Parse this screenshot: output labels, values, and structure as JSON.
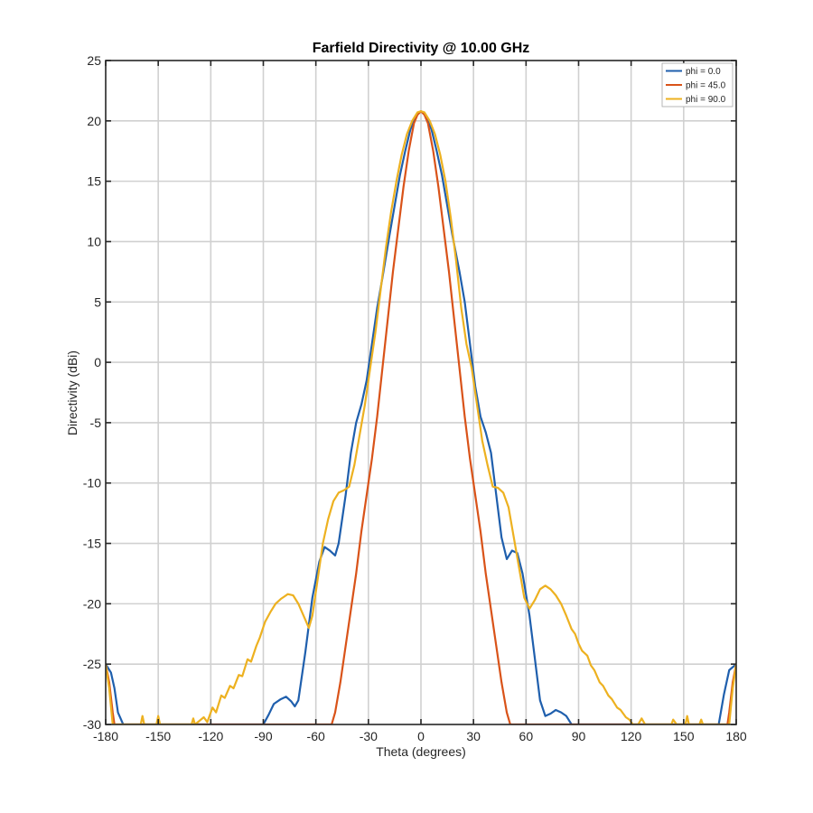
{
  "chart_data": {
    "type": "line",
    "title": "Farfield Directivity @ 10.00 GHz",
    "xlabel": "Theta (degrees)",
    "ylabel": "Directivity (dBi)",
    "xlim": [
      -180,
      180
    ],
    "ylim": [
      -30,
      25
    ],
    "xticks": [
      -180,
      -150,
      -120,
      -90,
      -60,
      -30,
      0,
      30,
      60,
      90,
      120,
      150,
      180
    ],
    "yticks": [
      -30,
      -25,
      -20,
      -15,
      -10,
      -5,
      0,
      5,
      10,
      15,
      20,
      25
    ],
    "grid": true,
    "legend_position": "top-right",
    "series": [
      {
        "name": "phi = 0.0",
        "color": "#1f5fad",
        "points": [
          [
            -180,
            -25
          ],
          [
            -177,
            -25.7
          ],
          [
            -175,
            -27
          ],
          [
            -173,
            -29
          ],
          [
            -170,
            -30
          ],
          [
            -90,
            -30
          ],
          [
            -87,
            -29.2
          ],
          [
            -84,
            -28.3
          ],
          [
            -80,
            -27.9
          ],
          [
            -77,
            -27.7
          ],
          [
            -74,
            -28.1
          ],
          [
            -72,
            -28.5
          ],
          [
            -70,
            -28
          ],
          [
            -66,
            -24
          ],
          [
            -62,
            -19.5
          ],
          [
            -58,
            -16.5
          ],
          [
            -55,
            -15.3
          ],
          [
            -52,
            -15.6
          ],
          [
            -49,
            -16
          ],
          [
            -47,
            -15
          ],
          [
            -43,
            -11
          ],
          [
            -40,
            -7.5
          ],
          [
            -37,
            -5
          ],
          [
            -34,
            -3.5
          ],
          [
            -31,
            -1.5
          ],
          [
            -28,
            1.5
          ],
          [
            -25,
            4.5
          ],
          [
            -22,
            7
          ],
          [
            -18,
            10.5
          ],
          [
            -15,
            13
          ],
          [
            -12,
            15.5
          ],
          [
            -9,
            17.5
          ],
          [
            -6,
            19.3
          ],
          [
            -3,
            20.4
          ],
          [
            0,
            20.8
          ],
          [
            3,
            20.4
          ],
          [
            6,
            19.3
          ],
          [
            9,
            17.5
          ],
          [
            12,
            15.5
          ],
          [
            15,
            13
          ],
          [
            18,
            10.5
          ],
          [
            22,
            7.5
          ],
          [
            25,
            5
          ],
          [
            28,
            1.5
          ],
          [
            31,
            -2
          ],
          [
            34,
            -4.5
          ],
          [
            37,
            -5.8
          ],
          [
            40,
            -7.5
          ],
          [
            43,
            -11
          ],
          [
            46,
            -14.5
          ],
          [
            49,
            -16.3
          ],
          [
            52,
            -15.6
          ],
          [
            55,
            -15.8
          ],
          [
            58,
            -17.5
          ],
          [
            62,
            -21
          ],
          [
            65,
            -24.5
          ],
          [
            68,
            -28
          ],
          [
            71,
            -29.3
          ],
          [
            74,
            -29.1
          ],
          [
            77,
            -28.8
          ],
          [
            80,
            -29
          ],
          [
            83,
            -29.3
          ],
          [
            86,
            -30
          ],
          [
            170,
            -30
          ],
          [
            173,
            -27.5
          ],
          [
            176,
            -25.5
          ],
          [
            180,
            -25
          ]
        ]
      },
      {
        "name": "phi = 45.0",
        "color": "#d95319",
        "points": [
          [
            -180,
            -25
          ],
          [
            -178,
            -26.5
          ],
          [
            -176,
            -29
          ],
          [
            -175,
            -30
          ],
          [
            -51,
            -30
          ],
          [
            -49,
            -29
          ],
          [
            -46,
            -26.5
          ],
          [
            -43,
            -23.5
          ],
          [
            -40,
            -20.5
          ],
          [
            -37,
            -17.5
          ],
          [
            -34,
            -14
          ],
          [
            -31,
            -11
          ],
          [
            -28,
            -8
          ],
          [
            -25,
            -4.5
          ],
          [
            -22,
            -0.5
          ],
          [
            -19,
            3.5
          ],
          [
            -16,
            7.5
          ],
          [
            -13,
            11
          ],
          [
            -10,
            14.5
          ],
          [
            -7,
            17.5
          ],
          [
            -4,
            19.8
          ],
          [
            -2,
            20.5
          ],
          [
            0,
            20.8
          ],
          [
            2,
            20.5
          ],
          [
            4,
            19.8
          ],
          [
            7,
            17.5
          ],
          [
            10,
            14.5
          ],
          [
            13,
            11
          ],
          [
            16,
            7.5
          ],
          [
            19,
            3.5
          ],
          [
            22,
            -0.5
          ],
          [
            25,
            -4.5
          ],
          [
            28,
            -8
          ],
          [
            31,
            -11
          ],
          [
            34,
            -14
          ],
          [
            37,
            -17.5
          ],
          [
            40,
            -20.5
          ],
          [
            43,
            -23.5
          ],
          [
            46,
            -26.5
          ],
          [
            49,
            -29
          ],
          [
            51,
            -30
          ],
          [
            175,
            -30
          ],
          [
            176,
            -29
          ],
          [
            178,
            -26.5
          ],
          [
            180,
            -25
          ]
        ]
      },
      {
        "name": "phi = 90.0",
        "color": "#edb120",
        "points": [
          [
            -180,
            -25
          ],
          [
            -178,
            -27
          ],
          [
            -176,
            -30
          ],
          [
            -160,
            -30
          ],
          [
            -159,
            -29.3
          ],
          [
            -158,
            -30
          ],
          [
            -151,
            -30
          ],
          [
            -150,
            -29.3
          ],
          [
            -149,
            -30
          ],
          [
            -131,
            -30
          ],
          [
            -130,
            -29.5
          ],
          [
            -129,
            -30
          ],
          [
            -124,
            -29.4
          ],
          [
            -122,
            -29.8
          ],
          [
            -119,
            -28.6
          ],
          [
            -117,
            -29
          ],
          [
            -114,
            -27.6
          ],
          [
            -112,
            -27.8
          ],
          [
            -109,
            -26.8
          ],
          [
            -107,
            -27
          ],
          [
            -104,
            -25.9
          ],
          [
            -102,
            -26
          ],
          [
            -99,
            -24.6
          ],
          [
            -97,
            -24.8
          ],
          [
            -94,
            -23.5
          ],
          [
            -92,
            -22.8
          ],
          [
            -89,
            -21.5
          ],
          [
            -86,
            -20.7
          ],
          [
            -83,
            -20
          ],
          [
            -80,
            -19.6
          ],
          [
            -78,
            -19.4
          ],
          [
            -76,
            -19.2
          ],
          [
            -73,
            -19.3
          ],
          [
            -70,
            -20
          ],
          [
            -67,
            -21
          ],
          [
            -64,
            -22
          ],
          [
            -62,
            -21
          ],
          [
            -59,
            -18
          ],
          [
            -56,
            -15
          ],
          [
            -53,
            -13
          ],
          [
            -50,
            -11.5
          ],
          [
            -47,
            -10.8
          ],
          [
            -44,
            -10.6
          ],
          [
            -41,
            -10.3
          ],
          [
            -38,
            -8.5
          ],
          [
            -35,
            -6
          ],
          [
            -32,
            -3.5
          ],
          [
            -29,
            -0.5
          ],
          [
            -26,
            2.5
          ],
          [
            -23,
            6
          ],
          [
            -20,
            9.5
          ],
          [
            -17,
            12.5
          ],
          [
            -14,
            15
          ],
          [
            -11,
            17.2
          ],
          [
            -8,
            18.9
          ],
          [
            -5,
            20
          ],
          [
            -2,
            20.7
          ],
          [
            0,
            20.8
          ],
          [
            2,
            20.7
          ],
          [
            5,
            20
          ],
          [
            8,
            18.9
          ],
          [
            11,
            17.2
          ],
          [
            14,
            15
          ],
          [
            17,
            12
          ],
          [
            20,
            8.5
          ],
          [
            23,
            4.5
          ],
          [
            26,
            1.5
          ],
          [
            29,
            -0.5
          ],
          [
            32,
            -3.5
          ],
          [
            35,
            -6.5
          ],
          [
            38,
            -8.5
          ],
          [
            41,
            -10.3
          ],
          [
            44,
            -10.4
          ],
          [
            47,
            -10.8
          ],
          [
            50,
            -12
          ],
          [
            53,
            -14.5
          ],
          [
            56,
            -17
          ],
          [
            59,
            -19.5
          ],
          [
            62,
            -20.4
          ],
          [
            65,
            -19.7
          ],
          [
            68,
            -18.8
          ],
          [
            71,
            -18.5
          ],
          [
            74,
            -18.8
          ],
          [
            77,
            -19.3
          ],
          [
            80,
            -20
          ],
          [
            83,
            -21
          ],
          [
            86,
            -22.1
          ],
          [
            88,
            -22.5
          ],
          [
            90,
            -23.3
          ],
          [
            92,
            -23.9
          ],
          [
            95,
            -24.3
          ],
          [
            97,
            -25.1
          ],
          [
            99,
            -25.5
          ],
          [
            102,
            -26.5
          ],
          [
            104,
            -26.8
          ],
          [
            107,
            -27.6
          ],
          [
            109,
            -27.9
          ],
          [
            112,
            -28.6
          ],
          [
            114,
            -28.8
          ],
          [
            117,
            -29.4
          ],
          [
            119,
            -29.6
          ],
          [
            121,
            -30
          ],
          [
            124,
            -30
          ],
          [
            126,
            -29.5
          ],
          [
            128,
            -30
          ],
          [
            143,
            -30
          ],
          [
            144,
            -29.6
          ],
          [
            146,
            -30
          ],
          [
            151,
            -30
          ],
          [
            152,
            -29.3
          ],
          [
            153,
            -30
          ],
          [
            159,
            -30
          ],
          [
            160,
            -29.6
          ],
          [
            161,
            -30
          ],
          [
            176,
            -30
          ],
          [
            178,
            -27
          ],
          [
            180,
            -25
          ]
        ]
      }
    ]
  }
}
